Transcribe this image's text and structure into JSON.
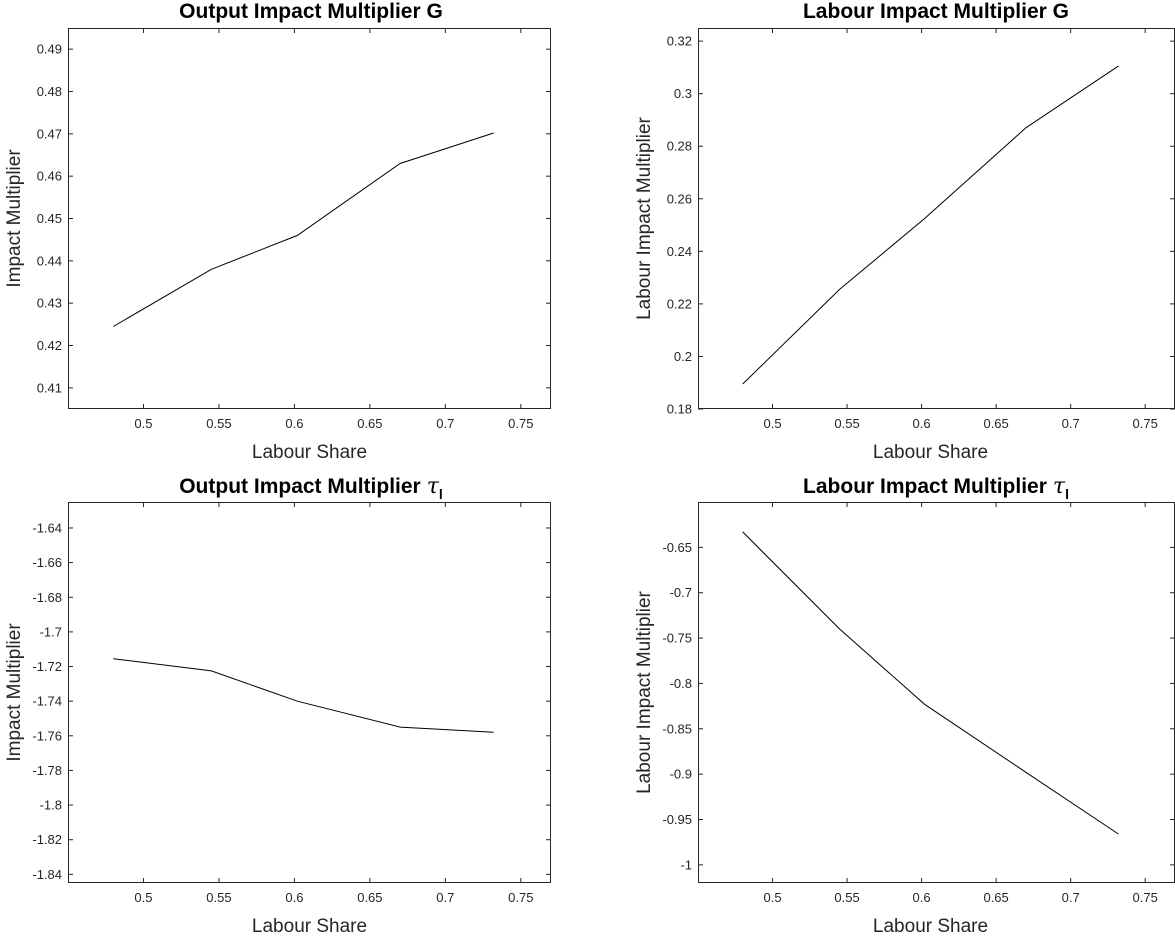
{
  "chart_data": [
    {
      "type": "line",
      "title": "Output Impact Multiplier G",
      "title_symbol": "",
      "title_subscript": "",
      "xlabel": "Labour Share",
      "ylabel": "Impact Multiplier",
      "xlim": [
        0.45,
        0.77
      ],
      "ylim": [
        0.405,
        0.495
      ],
      "xticks": [
        0.5,
        0.55,
        0.6,
        0.65,
        0.7,
        0.75
      ],
      "xtick_labels": [
        "0.5",
        "0.55",
        "0.6",
        "0.65",
        "0.7",
        "0.75"
      ],
      "yticks": [
        0.41,
        0.42,
        0.43,
        0.44,
        0.45,
        0.46,
        0.47,
        0.48,
        0.49
      ],
      "ytick_labels": [
        "0.41",
        "0.42",
        "0.43",
        "0.44",
        "0.45",
        "0.46",
        "0.47",
        "0.48",
        "0.49"
      ],
      "series": [
        {
          "x": [
            0.48,
            0.545,
            0.602,
            0.67,
            0.732
          ],
          "y": [
            0.4245,
            0.438,
            0.446,
            0.463,
            0.4702
          ]
        }
      ]
    },
    {
      "type": "line",
      "title": "Labour Impact Multiplier G",
      "title_symbol": "",
      "title_subscript": "",
      "xlabel": "Labour Share",
      "ylabel": "Labour Impact Multiplier",
      "xlim": [
        0.45,
        0.77
      ],
      "ylim": [
        0.18,
        0.325
      ],
      "xticks": [
        0.5,
        0.55,
        0.6,
        0.65,
        0.7,
        0.75
      ],
      "xtick_labels": [
        "0.5",
        "0.55",
        "0.6",
        "0.65",
        "0.7",
        "0.75"
      ],
      "yticks": [
        0.18,
        0.2,
        0.22,
        0.24,
        0.26,
        0.28,
        0.3,
        0.32
      ],
      "ytick_labels": [
        "0.18",
        "0.2",
        "0.22",
        "0.24",
        "0.26",
        "0.28",
        "0.3",
        "0.32"
      ],
      "series": [
        {
          "x": [
            0.48,
            0.545,
            0.602,
            0.67,
            0.732
          ],
          "y": [
            0.1895,
            0.2255,
            0.2525,
            0.287,
            0.3105
          ]
        }
      ]
    },
    {
      "type": "line",
      "title": "Output Impact Multiplier",
      "title_symbol": "τ",
      "title_subscript": "l",
      "xlabel": "Labour Share",
      "ylabel": "Impact Multiplier",
      "xlim": [
        0.45,
        0.77
      ],
      "ylim": [
        -1.845,
        -1.625
      ],
      "xticks": [
        0.5,
        0.55,
        0.6,
        0.65,
        0.7,
        0.75
      ],
      "xtick_labels": [
        "0.5",
        "0.55",
        "0.6",
        "0.65",
        "0.7",
        "0.75"
      ],
      "yticks": [
        -1.84,
        -1.82,
        -1.8,
        -1.78,
        -1.76,
        -1.74,
        -1.72,
        -1.7,
        -1.68,
        -1.66,
        -1.64
      ],
      "ytick_labels": [
        "-1.84",
        "-1.82",
        "-1.8",
        "-1.78",
        "-1.76",
        "-1.74",
        "-1.72",
        "-1.7",
        "-1.68",
        "-1.66",
        "-1.64"
      ],
      "series": [
        {
          "x": [
            0.48,
            0.545,
            0.602,
            0.67,
            0.732
          ],
          "y": [
            -1.7155,
            -1.7225,
            -1.74,
            -1.755,
            -1.758
          ]
        }
      ]
    },
    {
      "type": "line",
      "title": "Labour Impact Multiplier",
      "title_symbol": "τ",
      "title_subscript": "l",
      "xlabel": "Labour Share",
      "ylabel": "Labour Impact Multiplier",
      "xlim": [
        0.45,
        0.77
      ],
      "ylim": [
        -1.02,
        -0.6
      ],
      "xticks": [
        0.5,
        0.55,
        0.6,
        0.65,
        0.7,
        0.75
      ],
      "xtick_labels": [
        "0.5",
        "0.55",
        "0.6",
        "0.65",
        "0.7",
        "0.75"
      ],
      "yticks": [
        -1,
        -0.95,
        -0.9,
        -0.85,
        -0.8,
        -0.75,
        -0.7,
        -0.65
      ],
      "ytick_labels": [
        "-1",
        "-0.95",
        "-0.9",
        "-0.85",
        "-0.8",
        "-0.75",
        "-0.7",
        "-0.65"
      ],
      "series": [
        {
          "x": [
            0.48,
            0.545,
            0.602,
            0.67,
            0.732
          ],
          "y": [
            -0.633,
            -0.74,
            -0.823,
            -0.898,
            -0.966
          ]
        }
      ]
    }
  ]
}
